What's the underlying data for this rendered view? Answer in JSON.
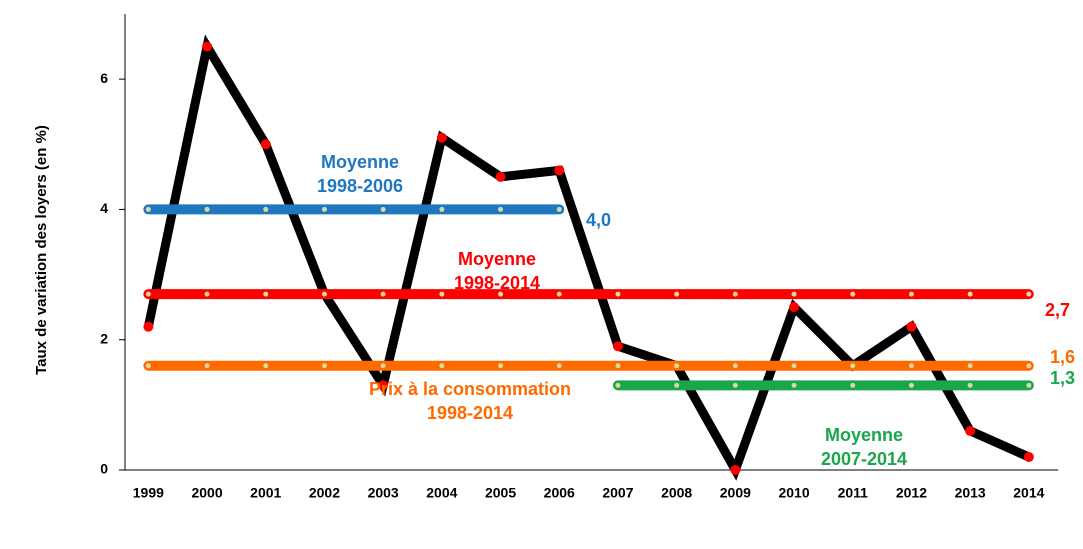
{
  "chart_data": {
    "type": "line",
    "ylabel": "Taux de variation des loyers  (en %)",
    "categories": [
      "1999",
      "2000",
      "2001",
      "2002",
      "2003",
      "2004",
      "2005",
      "2006",
      "2007",
      "2008",
      "2009",
      "2010",
      "2011",
      "2012",
      "2013",
      "2014"
    ],
    "ylim": [
      0,
      7
    ],
    "yticks": [
      0,
      2,
      4,
      6
    ],
    "series": [
      {
        "color": "#000000",
        "values": [
          2.2,
          6.5,
          5.0,
          2.7,
          1.3,
          5.1,
          4.5,
          4.6,
          1.9,
          1.6,
          0.0,
          2.5,
          1.6,
          2.2,
          0.6,
          0.2
        ]
      },
      {
        "name": "Moyenne 1998-2006",
        "color": "#1f77c0",
        "value_label": "4,0",
        "values": [
          4.0,
          4.0,
          4.0,
          4.0,
          4.0,
          4.0,
          4.0,
          4.0,
          null,
          null,
          null,
          null,
          null,
          null,
          null,
          null
        ]
      },
      {
        "name": "Moyenne 1998-2014",
        "color": "#ff0000",
        "value_label": "2,7",
        "values": [
          2.7,
          2.7,
          2.7,
          2.7,
          2.7,
          2.7,
          2.7,
          2.7,
          2.7,
          2.7,
          2.7,
          2.7,
          2.7,
          2.7,
          2.7,
          2.7
        ]
      },
      {
        "name": "Prix à la consommation 1998-2014",
        "color": "#ff6a00",
        "value_label": "1,6",
        "values": [
          1.6,
          1.6,
          1.6,
          1.6,
          1.6,
          1.6,
          1.6,
          1.6,
          1.6,
          1.6,
          1.6,
          1.6,
          1.6,
          1.6,
          1.6,
          1.6
        ]
      },
      {
        "name": "Moyenne 2007-2014",
        "color": "#1aa64a",
        "value_label": "1,3",
        "values": [
          null,
          null,
          null,
          null,
          null,
          null,
          null,
          null,
          1.3,
          1.3,
          1.3,
          1.3,
          1.3,
          1.3,
          1.3,
          1.3
        ]
      }
    ]
  }
}
